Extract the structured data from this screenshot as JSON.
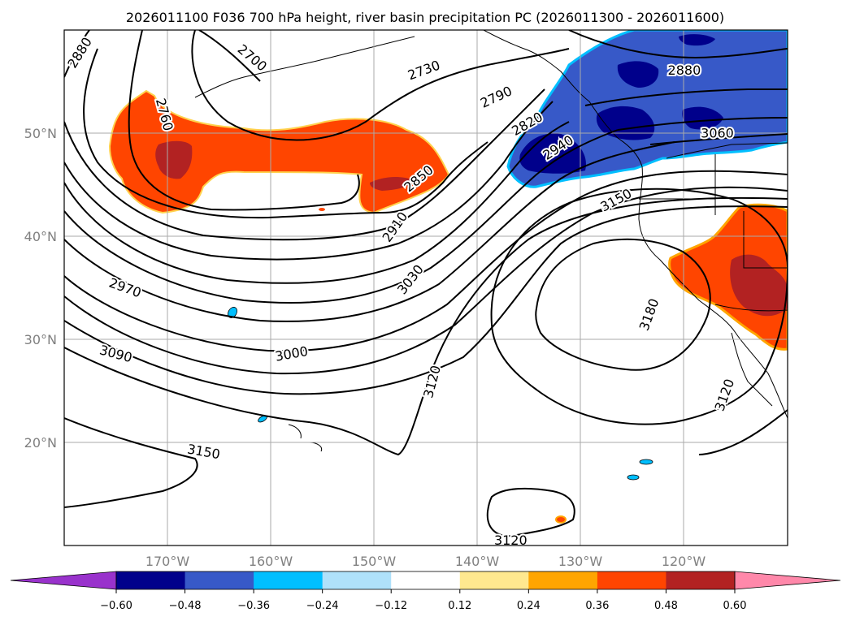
{
  "chart_data": {
    "type": "contour-map",
    "title": "2026011100 F036 700 hPa height, river basin precipitation PC (2026011300 - 2026011600)",
    "extent": {
      "lon_min": -180,
      "lon_max": -110,
      "lat_min": 10,
      "lat_max": 60
    },
    "grid": true,
    "x_ticks": [
      {
        "value": -170,
        "label": "170°W"
      },
      {
        "value": -160,
        "label": "160°W"
      },
      {
        "value": -150,
        "label": "150°W"
      },
      {
        "value": -140,
        "label": "140°W"
      },
      {
        "value": -130,
        "label": "130°W"
      },
      {
        "value": -120,
        "label": "120°W"
      }
    ],
    "y_ticks": [
      {
        "value": 20,
        "label": "20°N"
      },
      {
        "value": 30,
        "label": "30°N"
      },
      {
        "value": 40,
        "label": "40°N"
      },
      {
        "value": 50,
        "label": "50°N"
      }
    ],
    "contour_labels": [
      {
        "text": "2880",
        "lon": -178.5,
        "lat": 57.8,
        "angle": -58
      },
      {
        "text": "2700",
        "lon": -161.8,
        "lat": 57.3,
        "angle": 40
      },
      {
        "text": "2760",
        "lon": -170.3,
        "lat": 51.8,
        "angle": 75
      },
      {
        "text": "2730",
        "lon": -145.2,
        "lat": 56.1,
        "angle": -20
      },
      {
        "text": "2790",
        "lon": -138.2,
        "lat": 53.5,
        "angle": -25
      },
      {
        "text": "2820",
        "lon": -135.2,
        "lat": 50.9,
        "angle": -30
      },
      {
        "text": "2940",
        "lon": -132.2,
        "lat": 48.6,
        "angle": -33
      },
      {
        "text": "2850",
        "lon": -145.7,
        "lat": 45.6,
        "angle": -40
      },
      {
        "text": "2880",
        "lon": -120.0,
        "lat": 56.1,
        "angle": 0
      },
      {
        "text": "3060",
        "lon": -116.8,
        "lat": 50.0,
        "angle": 0
      },
      {
        "text": "2910",
        "lon": -148.0,
        "lat": 40.9,
        "angle": -55
      },
      {
        "text": "3150",
        "lon": -126.6,
        "lat": 43.5,
        "angle": -28
      },
      {
        "text": "2970",
        "lon": -174.1,
        "lat": 35.0,
        "angle": 20
      },
      {
        "text": "3030",
        "lon": -146.5,
        "lat": 35.8,
        "angle": -52
      },
      {
        "text": "3180",
        "lon": -123.4,
        "lat": 32.4,
        "angle": -70
      },
      {
        "text": "3090",
        "lon": -175.0,
        "lat": 28.6,
        "angle": 15
      },
      {
        "text": "3000",
        "lon": -158.0,
        "lat": 28.6,
        "angle": -10
      },
      {
        "text": "3120",
        "lon": -144.4,
        "lat": 25.9,
        "angle": -75
      },
      {
        "text": "3120",
        "lon": -116.1,
        "lat": 24.6,
        "angle": -70
      },
      {
        "text": "3150",
        "lon": -166.5,
        "lat": 19.1,
        "angle": 10
      },
      {
        "text": "3120",
        "lon": -136.8,
        "lat": 10.5,
        "angle": 0
      }
    ],
    "colorbar": {
      "ticks": [
        "−0.60",
        "−0.48",
        "−0.36",
        "−0.24",
        "−0.12",
        "0.12",
        "0.24",
        "0.36",
        "0.48",
        "0.60"
      ],
      "colors": [
        "#9932cc",
        "#00008b",
        "#3759c8",
        "#00bfff",
        "#afe1fa",
        "#ffffff",
        "#ffe88f",
        "#ffa500",
        "#ff4500",
        "#b22222",
        "#ff88aa"
      ],
      "extend": "both"
    }
  }
}
